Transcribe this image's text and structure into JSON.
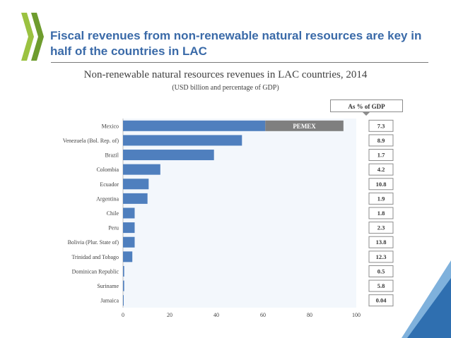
{
  "slide": {
    "title": "Fiscal revenues from non-renewable natural resources are key in half of the countries in LAC"
  },
  "colors": {
    "bar": "#4f7fbe",
    "pemex": "#7f7f7f",
    "title": "#3a6aa8",
    "logo": "#9bc241",
    "corner": "#2f6fb0"
  },
  "chart_data": {
    "type": "bar",
    "orientation": "horizontal",
    "title": "Non-renewable natural resources revenues in LAC countries, 2014",
    "subtitle": "(USD billion and percentage of GDP)",
    "categories": [
      "Mexico",
      "Venezuela (Bol. Rep. of)",
      "Brazil",
      "Colombia",
      "Ecuador",
      "Argentina",
      "Chile",
      "Peru",
      "Bolivia (Plur. State of)",
      "Trinidad and Tobago",
      "Dominican Republic",
      "Suriname",
      "Jamaica"
    ],
    "values": [
      61,
      51,
      39,
      16,
      11,
      10.5,
      5,
      5,
      5,
      4,
      0.5,
      0.5,
      0.05
    ],
    "stacked_segment": {
      "category": "Mexico",
      "label": "PEMEX",
      "start": 61,
      "end": 94.5
    },
    "xlim": [
      0,
      100
    ],
    "xticks": [
      "0",
      "20",
      "40",
      "60",
      "80",
      "100"
    ],
    "gdp_header": "As % of GDP",
    "gdp_share": [
      "7.3",
      "8.9",
      "1.7",
      "4.2",
      "10.8",
      "1.9",
      "1.8",
      "2.3",
      "13.8",
      "12.3",
      "0.5",
      "5.8",
      "0.04"
    ]
  }
}
